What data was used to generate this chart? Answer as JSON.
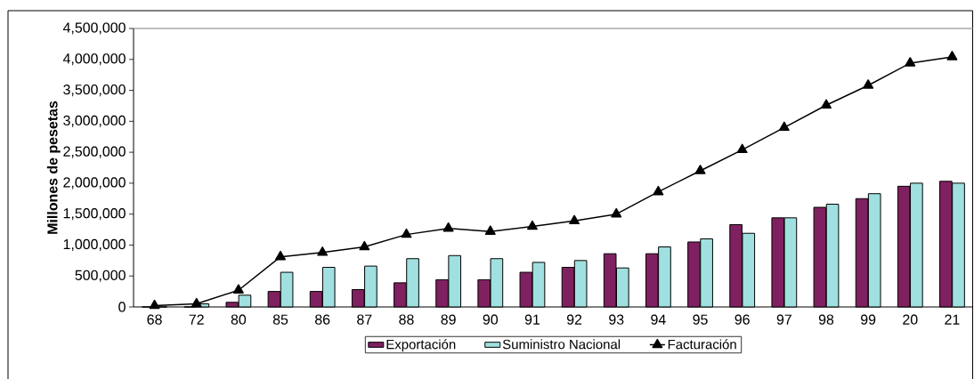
{
  "chart_data": {
    "type": "bar",
    "ylabel": "Millones de pesetas",
    "categories": [
      "68",
      "72",
      "80",
      "85",
      "86",
      "87",
      "88",
      "89",
      "90",
      "91",
      "92",
      "93",
      "94",
      "95",
      "96",
      "97",
      "98",
      "99",
      "20",
      "21"
    ],
    "series": [
      {
        "name": "Exportación",
        "color": "#7f2160",
        "values": [
          0,
          0,
          75000,
          250000,
          250000,
          280000,
          390000,
          440000,
          440000,
          560000,
          640000,
          860000,
          860000,
          1050000,
          1330000,
          1440000,
          1610000,
          1750000,
          1950000,
          2030000
        ]
      },
      {
        "name": "Suministro Nacional",
        "color": "#a0e0e0",
        "values": [
          0,
          50000,
          190000,
          560000,
          640000,
          660000,
          780000,
          830000,
          780000,
          720000,
          750000,
          630000,
          970000,
          1100000,
          1190000,
          1440000,
          1660000,
          1830000,
          2000000,
          2000000
        ]
      },
      {
        "name": "Facturación",
        "type": "line",
        "color": "#000000",
        "marker": "triangle",
        "values": [
          20000,
          50000,
          270000,
          810000,
          880000,
          970000,
          1170000,
          1270000,
          1220000,
          1300000,
          1390000,
          1500000,
          1860000,
          2200000,
          2540000,
          2900000,
          3260000,
          3580000,
          3940000,
          4040000
        ]
      }
    ],
    "ylim": [
      0,
      4500000
    ],
    "yticks": [
      {
        "value": 0,
        "label": "0"
      },
      {
        "value": 500000,
        "label": "500,000"
      },
      {
        "value": 1000000,
        "label": "1,000,000"
      },
      {
        "value": 1500000,
        "label": "1,500,000"
      },
      {
        "value": 2000000,
        "label": "2,000,000"
      },
      {
        "value": 2500000,
        "label": "2,500,000"
      },
      {
        "value": 3000000,
        "label": "3,000,000"
      },
      {
        "value": 3500000,
        "label": "3,500,000"
      },
      {
        "value": 4000000,
        "label": "4,000,000"
      },
      {
        "value": 4500000,
        "label": "4,500,000"
      }
    ],
    "grid": false,
    "legend": "bottom"
  }
}
